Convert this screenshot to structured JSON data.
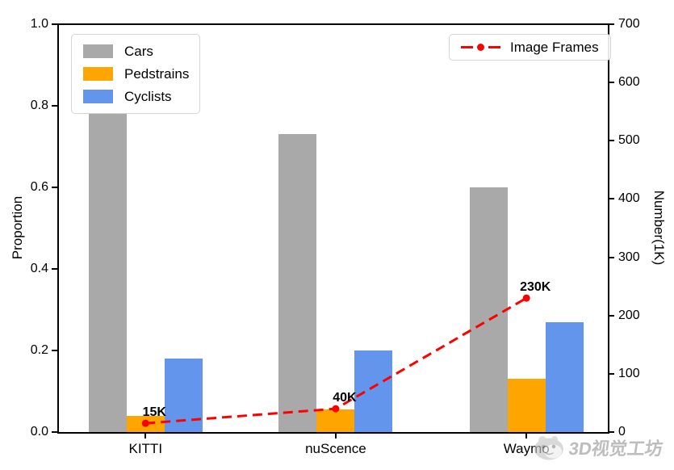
{
  "watermark": {
    "text": "3D视觉工坊"
  },
  "chart_data": {
    "type": "bar",
    "categories": [
      "KITTI",
      "nuScence",
      "Waymo"
    ],
    "bar_series": [
      {
        "name": "Cars",
        "color": "#a9a9a9",
        "values": [
          0.78,
          0.73,
          0.6
        ]
      },
      {
        "name": "Pedstrains",
        "color": "#ffa500",
        "values": [
          0.04,
          0.055,
          0.13
        ]
      },
      {
        "name": "Cyclists",
        "color": "#6495ed",
        "values": [
          0.18,
          0.2,
          0.27
        ]
      }
    ],
    "line_series": {
      "name": "Image Frames",
      "color": "#ff0000",
      "style": "dashed",
      "axis": "right",
      "values": [
        15,
        40,
        230
      ],
      "point_labels": [
        "15K",
        "40K",
        "230K"
      ]
    },
    "left_axis": {
      "label": "Proportion",
      "min": 0,
      "max": 1.0,
      "tick_labels": [
        "0.0",
        "0.2",
        "0.4",
        "0.6",
        "0.8",
        "1.0"
      ]
    },
    "right_axis": {
      "label": "Number(1K)",
      "min": 0,
      "max": 700,
      "tick_labels": [
        "0",
        "100",
        "200",
        "300",
        "400",
        "500",
        "600",
        "700"
      ]
    },
    "grid": false,
    "legend_bars_position": "upper left",
    "legend_line_position": "upper right"
  }
}
